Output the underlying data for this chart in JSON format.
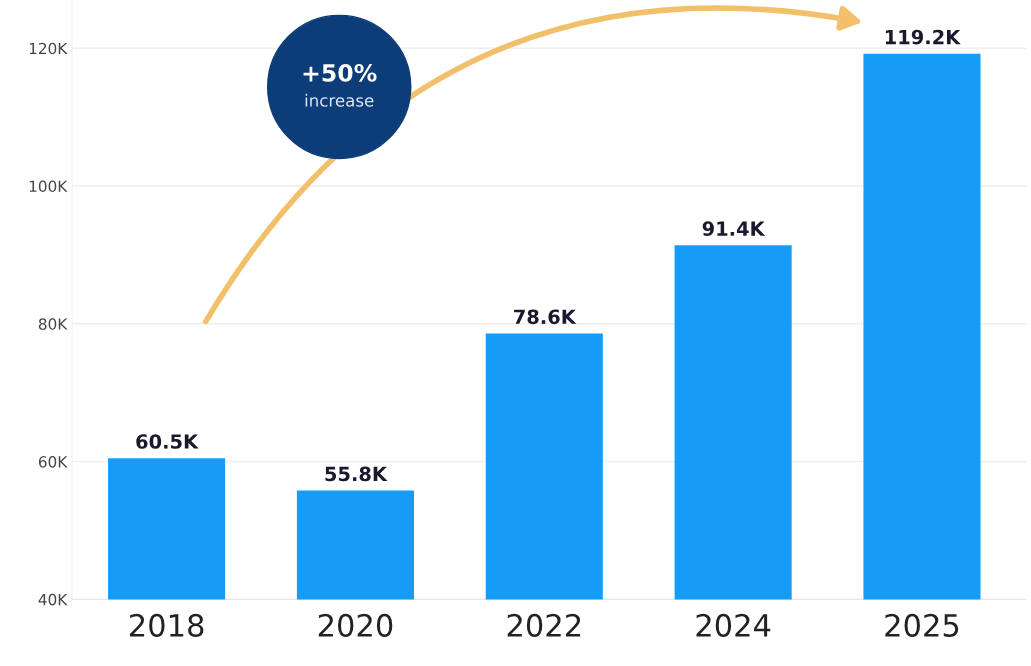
{
  "chart_data": {
    "type": "bar",
    "categories": [
      "2018",
      "2020",
      "2022",
      "2024",
      "2025"
    ],
    "values": [
      60500,
      55800,
      78600,
      91400,
      119200
    ],
    "value_labels": [
      "60.5K",
      "55.8K",
      "78.6K",
      "91.4K",
      "119.2K"
    ],
    "color": "#169cf7",
    "ylim": [
      40000,
      127000
    ],
    "yticks": [
      {
        "value": 40000,
        "label": "40K"
      },
      {
        "value": 60000,
        "label": "60K"
      },
      {
        "value": 80000,
        "label": "80K"
      },
      {
        "value": 100000,
        "label": "100K"
      },
      {
        "value": 120000,
        "label": "120K"
      }
    ],
    "grid": "y",
    "annotations": [
      "+50%",
      "increase"
    ]
  }
}
